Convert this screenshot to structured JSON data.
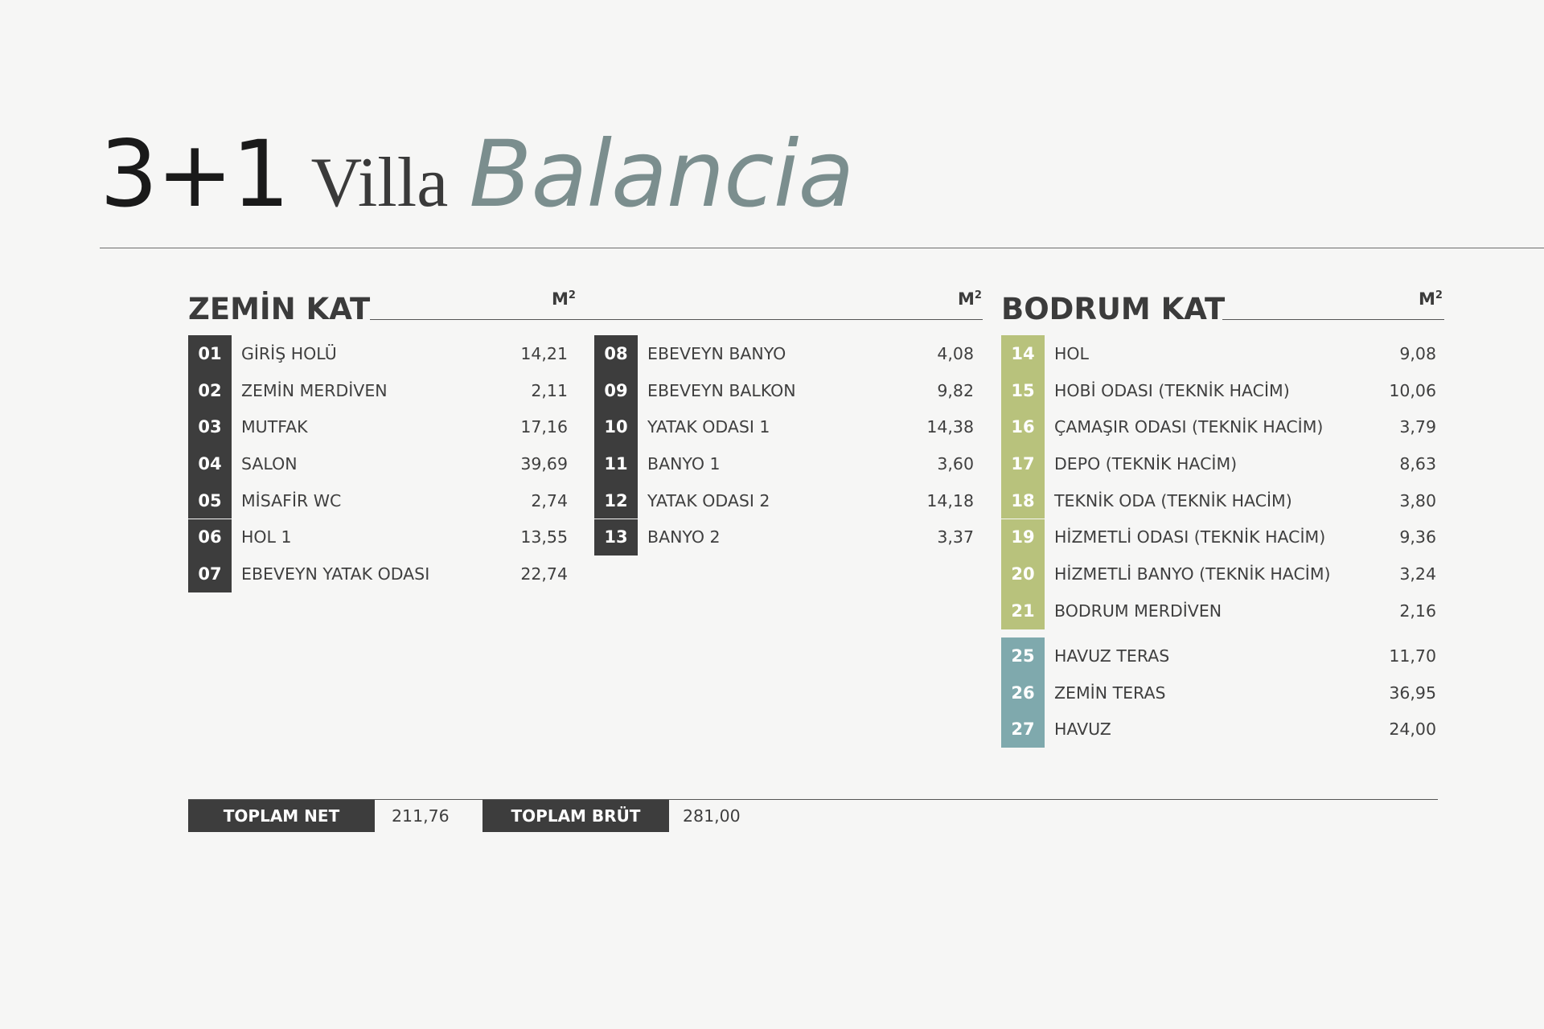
{
  "title": {
    "type": "3+1",
    "villa": "Villa",
    "name": "Balancia"
  },
  "unit": {
    "base": "M",
    "exp": "2"
  },
  "sections": {
    "zemin": "ZEMİN KAT",
    "bodrum": "BODRUM KAT"
  },
  "zemin_col1": [
    {
      "no": "01",
      "name": "GİRİŞ HOLÜ",
      "area": "14,21"
    },
    {
      "no": "02",
      "name": "ZEMİN MERDİVEN",
      "area": "2,11"
    },
    {
      "no": "03",
      "name": "MUTFAK",
      "area": "17,16"
    },
    {
      "no": "04",
      "name": "SALON",
      "area": "39,69"
    },
    {
      "no": "05",
      "name": "MİSAFİR WC",
      "area": "2,74"
    },
    {
      "no": "06",
      "name": "HOL 1",
      "area": "13,55"
    },
    {
      "no": "07",
      "name": "EBEVEYN YATAK ODASI",
      "area": "22,74"
    }
  ],
  "zemin_col2": [
    {
      "no": "08",
      "name": "EBEVEYN BANYO",
      "area": "4,08"
    },
    {
      "no": "09",
      "name": "EBEVEYN BALKON",
      "area": "9,82"
    },
    {
      "no": "10",
      "name": "YATAK ODASI 1",
      "area": "14,38"
    },
    {
      "no": "11",
      "name": "BANYO 1",
      "area": "3,60"
    },
    {
      "no": "12",
      "name": "YATAK ODASI 2",
      "area": "14,18"
    },
    {
      "no": "13",
      "name": "BANYO 2",
      "area": "3,37"
    }
  ],
  "bodrum": [
    {
      "no": "14",
      "name": "HOL",
      "area": "9,08"
    },
    {
      "no": "15",
      "name": "HOBİ ODASI (TEKNİK HACİM)",
      "area": "10,06"
    },
    {
      "no": "16",
      "name": "ÇAMAŞIR ODASI (TEKNİK HACİM)",
      "area": "3,79"
    },
    {
      "no": "17",
      "name": "DEPO (TEKNİK HACİM)",
      "area": "8,63"
    },
    {
      "no": "18",
      "name": "TEKNİK ODA (TEKNİK HACİM)",
      "area": "3,80"
    },
    {
      "no": "19",
      "name": "HİZMETLİ ODASI (TEKNİK HACİM)",
      "area": "9,36"
    },
    {
      "no": "20",
      "name": "HİZMETLİ BANYO (TEKNİK HACİM)",
      "area": "3,24"
    },
    {
      "no": "21",
      "name": "BODRUM MERDİVEN",
      "area": "2,16"
    }
  ],
  "outdoor": [
    {
      "no": "25",
      "name": "HAVUZ TERAS",
      "area": "11,70"
    },
    {
      "no": "26",
      "name": "ZEMİN TERAS",
      "area": "36,95"
    },
    {
      "no": "27",
      "name": "HAVUZ",
      "area": "24,00"
    }
  ],
  "totals": {
    "net_label": "TOPLAM NET",
    "net_value": "211,76",
    "gross_label": "TOPLAM BRÜT",
    "gross_value": "281,00"
  },
  "colors": {
    "dark": "#3d3d3d",
    "green": "#b8c27c",
    "teal": "#7fa9ad",
    "accent": "#7b8e8e"
  }
}
